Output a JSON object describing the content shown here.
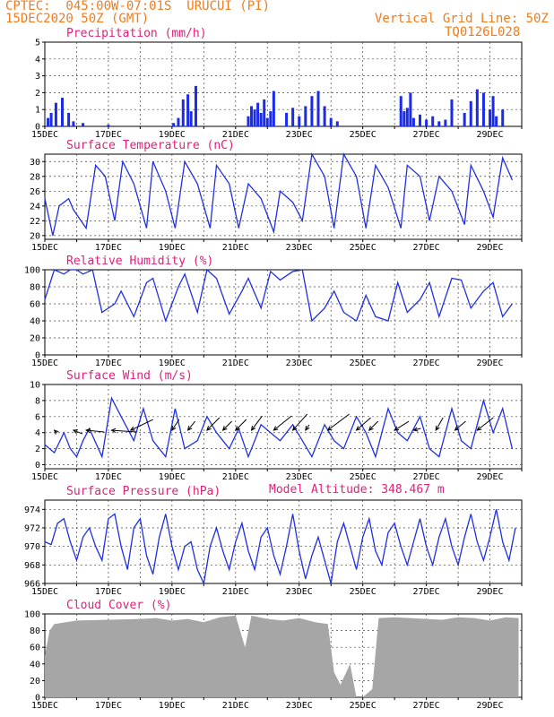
{
  "header": {
    "line1": "CPTEC:  045:00W-07:01S  URUCUI (PI)",
    "line2": "15DEC2020 50Z (GMT)",
    "grid_note": "Vertical Grid Line: 50Z",
    "code": "TQ0126L028",
    "model_altitude": "Model Altitude: 348.467 m"
  },
  "colors": {
    "header": "#f07c1c",
    "title": "#e0207a",
    "line": "#2030e0",
    "bar": "#1a2ce8",
    "cloud": "#a6a6a6"
  },
  "chart_data": [
    {
      "type": "bar",
      "title": "Precipitation (mm/h)",
      "x_labels": [
        "15DEC",
        "17DEC",
        "19DEC",
        "21DEC",
        "23DEC",
        "25DEC",
        "27DEC",
        "29DEC"
      ],
      "ylim": [
        0,
        5
      ],
      "yticks": [
        0,
        1,
        2,
        3,
        4,
        5
      ],
      "grid": true,
      "series": [
        {
          "x_days": [
            0.1,
            0.2,
            0.35,
            0.55,
            0.75,
            0.9,
            1.2,
            2.0,
            4.05,
            4.2,
            4.35,
            4.5,
            4.6,
            4.75,
            6.4,
            6.5,
            6.6,
            6.7,
            6.8,
            6.9,
            7.0,
            7.1,
            7.2,
            7.6,
            7.8,
            8.0,
            8.2,
            8.4,
            8.6,
            8.8,
            9.0,
            9.2,
            11.2,
            11.3,
            11.4,
            11.5,
            11.6,
            11.8,
            12.0,
            12.2,
            12.4,
            12.6,
            12.8,
            13.2,
            13.4,
            13.6,
            13.8,
            14.0,
            14.1,
            14.2,
            14.4
          ],
          "values": [
            0.5,
            0.8,
            1.4,
            1.7,
            0.8,
            0.3,
            0.2,
            0.1,
            0.2,
            0.5,
            1.6,
            1.9,
            0.9,
            2.4,
            0.6,
            1.2,
            1.0,
            1.4,
            0.8,
            1.6,
            0.5,
            0.9,
            2.1,
            0.8,
            1.1,
            0.6,
            1.2,
            1.8,
            2.1,
            1.2,
            0.5,
            0.3,
            1.8,
            0.9,
            1.1,
            2.0,
            0.5,
            0.7,
            0.4,
            0.6,
            0.3,
            0.4,
            1.6,
            0.8,
            1.5,
            2.2,
            2.0,
            1.0,
            1.8,
            0.6,
            1.0
          ]
        }
      ]
    },
    {
      "type": "line",
      "title": "Surface Temperature (nC)",
      "x_labels": [
        "15DEC",
        "17DEC",
        "19DEC",
        "21DEC",
        "23DEC",
        "25DEC",
        "27DEC",
        "29DEC"
      ],
      "ylim": [
        19.5,
        31
      ],
      "yticks": [
        20,
        22,
        24,
        26,
        28,
        30
      ],
      "grid": true,
      "series": [
        {
          "x_days": [
            0,
            0.25,
            0.45,
            0.75,
            0.9,
            1.3,
            1.6,
            1.9,
            2.2,
            2.45,
            2.8,
            3.2,
            3.4,
            3.8,
            4.1,
            4.4,
            4.8,
            5.2,
            5.4,
            5.8,
            6.1,
            6.4,
            6.8,
            7.2,
            7.4,
            7.8,
            8.1,
            8.4,
            8.8,
            9.1,
            9.4,
            9.8,
            10.1,
            10.4,
            10.8,
            11.2,
            11.4,
            11.8,
            12.1,
            12.4,
            12.8,
            13.2,
            13.4,
            13.8,
            14.1,
            14.4,
            14.7
          ],
          "values": [
            25,
            20,
            24,
            25,
            23.5,
            21,
            29.5,
            28,
            22,
            30,
            27,
            21,
            30,
            26,
            21,
            30,
            27,
            21,
            29.5,
            27,
            21,
            27,
            25,
            20.5,
            26,
            24.5,
            22,
            31,
            28,
            21,
            31,
            28,
            21,
            29.5,
            26.5,
            21,
            29.5,
            28,
            22,
            28,
            26,
            21.5,
            29.5,
            26,
            22.5,
            30.5,
            27.5
          ]
        }
      ]
    },
    {
      "type": "line",
      "title": "Relative Humidity (%)",
      "x_labels": [
        "15DEC",
        "17DEC",
        "19DEC",
        "21DEC",
        "23DEC",
        "25DEC",
        "27DEC",
        "29DEC"
      ],
      "ylim": [
        0,
        100
      ],
      "yticks": [
        0,
        20,
        40,
        60,
        80,
        100
      ],
      "grid": true,
      "series": [
        {
          "x_days": [
            0,
            0.3,
            0.6,
            0.8,
            1.0,
            1.2,
            1.5,
            1.8,
            2.2,
            2.4,
            2.8,
            3.2,
            3.4,
            3.8,
            4.2,
            4.4,
            4.8,
            5.1,
            5.4,
            5.8,
            6.2,
            6.4,
            6.8,
            7.1,
            7.4,
            7.8,
            8.1,
            8.4,
            8.8,
            9.1,
            9.4,
            9.8,
            10.1,
            10.4,
            10.8,
            11.1,
            11.4,
            11.8,
            12.1,
            12.4,
            12.8,
            13.1,
            13.4,
            13.8,
            14.1,
            14.4,
            14.7
          ],
          "values": [
            65,
            100,
            95,
            100,
            100,
            95,
            100,
            50,
            60,
            75,
            45,
            85,
            90,
            40,
            80,
            95,
            50,
            100,
            90,
            48,
            75,
            90,
            55,
            98,
            88,
            98,
            100,
            40,
            55,
            75,
            50,
            40,
            70,
            45,
            40,
            85,
            50,
            65,
            85,
            45,
            90,
            88,
            55,
            75,
            85,
            45,
            60
          ]
        }
      ]
    },
    {
      "type": "line",
      "title": "Surface Wind (m/s)",
      "x_labels": [
        "15DEC",
        "17DEC",
        "19DEC",
        "21DEC",
        "23DEC",
        "25DEC",
        "27DEC",
        "29DEC"
      ],
      "ylim": [
        -0.5,
        10
      ],
      "yticks": [
        0,
        2,
        4,
        6,
        8,
        10
      ],
      "grid": true,
      "series": [
        {
          "x_days": [
            0,
            0.3,
            0.6,
            0.8,
            1.0,
            1.2,
            1.4,
            1.8,
            2.1,
            2.4,
            2.8,
            3.1,
            3.4,
            3.8,
            4.1,
            4.4,
            4.8,
            5.1,
            5.4,
            5.8,
            6.1,
            6.4,
            6.8,
            7.1,
            7.4,
            7.8,
            8.1,
            8.4,
            8.8,
            9.1,
            9.4,
            9.8,
            10.1,
            10.4,
            10.8,
            11.1,
            11.4,
            11.8,
            12.1,
            12.4,
            12.8,
            13.1,
            13.4,
            13.8,
            14.1,
            14.4,
            14.7
          ],
          "values": [
            2.5,
            1.5,
            4,
            2,
            1,
            3,
            4.5,
            1,
            8.3,
            6,
            3,
            7,
            3,
            1,
            7,
            2,
            3,
            6,
            4,
            2,
            4.5,
            1,
            5,
            4,
            3,
            5,
            3,
            1,
            5,
            3,
            2,
            6,
            4,
            1,
            7,
            4,
            3,
            6,
            2,
            1,
            7,
            3,
            2,
            8,
            4,
            7,
            2
          ]
        }
      ],
      "arrows": [
        {
          "x_day": 0.3,
          "dx": 3,
          "dy": 3
        },
        {
          "x_day": 0.9,
          "dx": 10,
          "dy": 4
        },
        {
          "x_day": 1.3,
          "dx": 20,
          "dy": 2
        },
        {
          "x_day": 2.1,
          "dx": 28,
          "dy": 2
        },
        {
          "x_day": 2.7,
          "dx": 25,
          "dy": -12
        },
        {
          "x_day": 4.0,
          "dx": 8,
          "dy": -12
        },
        {
          "x_day": 4.5,
          "dx": 8,
          "dy": -10
        },
        {
          "x_day": 5.1,
          "dx": 14,
          "dy": -14
        },
        {
          "x_day": 5.6,
          "dx": 10,
          "dy": -10
        },
        {
          "x_day": 6.0,
          "dx": 12,
          "dy": -12
        },
        {
          "x_day": 6.5,
          "dx": 12,
          "dy": -16
        },
        {
          "x_day": 7.2,
          "dx": 20,
          "dy": -16
        },
        {
          "x_day": 7.8,
          "dx": 16,
          "dy": -18
        },
        {
          "x_day": 8.2,
          "dx": 4,
          "dy": -6
        },
        {
          "x_day": 8.9,
          "dx": 24,
          "dy": -18
        },
        {
          "x_day": 9.8,
          "dx": 16,
          "dy": -14
        },
        {
          "x_day": 10.2,
          "dx": 10,
          "dy": -10
        },
        {
          "x_day": 11.0,
          "dx": 16,
          "dy": -10
        },
        {
          "x_day": 11.6,
          "dx": 8,
          "dy": -2
        },
        {
          "x_day": 12.3,
          "dx": 8,
          "dy": -14
        },
        {
          "x_day": 12.9,
          "dx": 12,
          "dy": -10
        },
        {
          "x_day": 13.6,
          "dx": 18,
          "dy": -14
        }
      ]
    },
    {
      "type": "line",
      "title": "Surface Pressure (hPa)",
      "x_labels": [
        "15DEC",
        "17DEC",
        "19DEC",
        "21DEC",
        "23DEC",
        "25DEC",
        "27DEC",
        "29DEC"
      ],
      "ylim": [
        966,
        975
      ],
      "yticks": [
        966,
        968,
        970,
        972,
        974
      ],
      "grid": true,
      "series": [
        {
          "x_days": [
            0,
            0.2,
            0.4,
            0.6,
            0.8,
            1.0,
            1.2,
            1.4,
            1.6,
            1.8,
            2.0,
            2.2,
            2.4,
            2.6,
            2.8,
            3.0,
            3.2,
            3.4,
            3.6,
            3.8,
            4.0,
            4.2,
            4.4,
            4.6,
            4.8,
            5.0,
            5.2,
            5.4,
            5.6,
            5.8,
            6.0,
            6.2,
            6.4,
            6.6,
            6.8,
            7.0,
            7.2,
            7.4,
            7.6,
            7.8,
            8.0,
            8.2,
            8.4,
            8.6,
            8.8,
            9.0,
            9.2,
            9.4,
            9.6,
            9.8,
            10.0,
            10.2,
            10.4,
            10.6,
            10.8,
            11.0,
            11.2,
            11.4,
            11.6,
            11.8,
            12.0,
            12.2,
            12.4,
            12.6,
            12.8,
            13.0,
            13.2,
            13.4,
            13.6,
            13.8,
            14.0,
            14.2,
            14.4,
            14.6,
            14.8
          ],
          "values": [
            970.5,
            970.2,
            972.5,
            973,
            970.5,
            968.5,
            971,
            972,
            970,
            968.5,
            973,
            973.5,
            970,
            967.5,
            972,
            973,
            969,
            967,
            971,
            973.5,
            970,
            967.5,
            970,
            970.5,
            967.5,
            966,
            970,
            972,
            969.5,
            967.5,
            970.5,
            972.5,
            969.5,
            967.5,
            971,
            972,
            969,
            967,
            970,
            973.5,
            969.5,
            966.5,
            969,
            971,
            968.5,
            966,
            970.5,
            972.5,
            970,
            967.5,
            971,
            973,
            969.5,
            968,
            971.5,
            972.5,
            970,
            968,
            970.5,
            973,
            970,
            968,
            971,
            973,
            970,
            968,
            971,
            973.5,
            970.5,
            968.5,
            971,
            974,
            970.5,
            968.5,
            972
          ]
        }
      ]
    },
    {
      "type": "area",
      "title": "Cloud Cover (%)",
      "x_labels": [
        "15DEC",
        "17DEC",
        "19DEC",
        "21DEC",
        "23DEC",
        "25DEC",
        "27DEC",
        "29DEC"
      ],
      "ylim": [
        0,
        100
      ],
      "yticks": [
        0,
        20,
        40,
        60,
        80,
        100
      ],
      "grid": true,
      "series": [
        {
          "x_days": [
            0,
            0.15,
            0.3,
            1.0,
            2.0,
            3.0,
            3.5,
            4.0,
            4.5,
            5.0,
            5.5,
            6.0,
            6.3,
            6.5,
            7.0,
            7.5,
            8.0,
            8.5,
            8.9,
            9.1,
            9.3,
            9.6,
            9.8,
            10.0,
            10.3,
            10.5,
            11.0,
            11.5,
            12.0,
            12.5,
            13.0,
            13.5,
            14.0,
            14.5,
            14.9
          ],
          "values": [
            50,
            80,
            88,
            92,
            93,
            94,
            95,
            92,
            94,
            90,
            96,
            98,
            60,
            98,
            94,
            92,
            95,
            90,
            88,
            30,
            15,
            40,
            0,
            0,
            10,
            95,
            96,
            95,
            94,
            93,
            96,
            95,
            92,
            96,
            95
          ]
        }
      ]
    }
  ]
}
